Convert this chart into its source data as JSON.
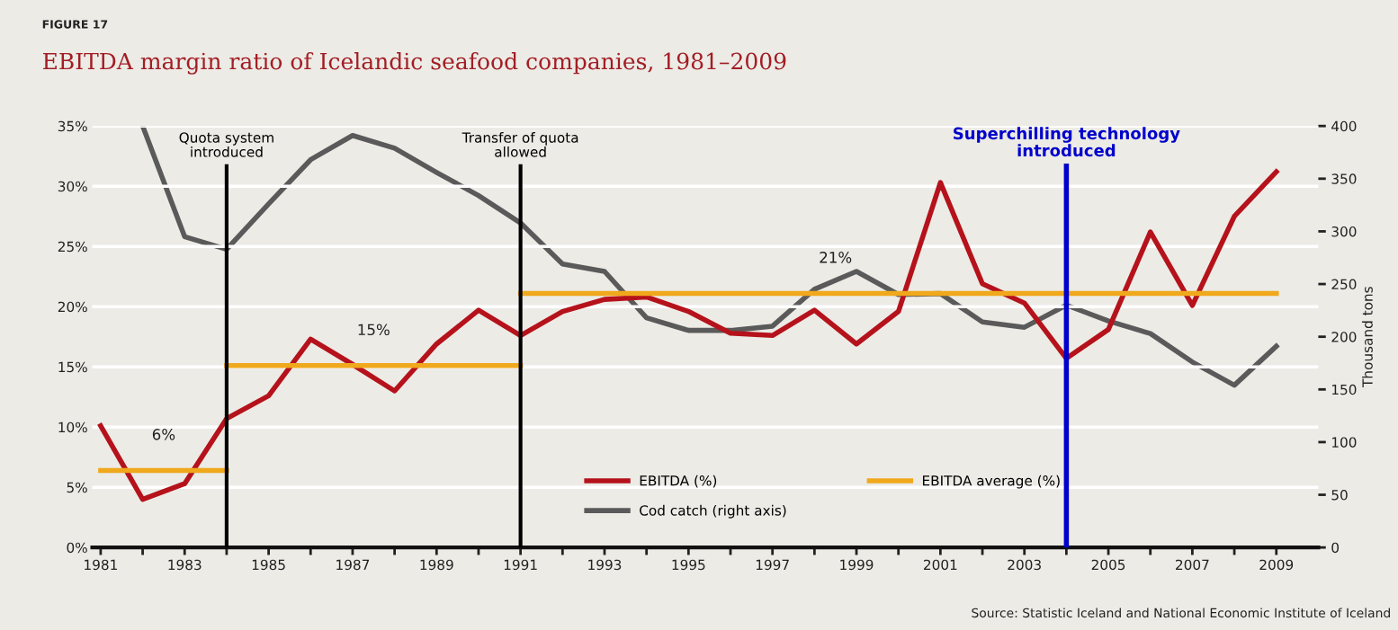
{
  "chart_data": {
    "type": "line",
    "title": "EBITDA margin ratio of Icelandic seafood companies, 1981–2009",
    "y2label": "Thousand tons",
    "x": [
      1981,
      1982,
      1983,
      1984,
      1985,
      1986,
      1987,
      1988,
      1989,
      1990,
      1991,
      1992,
      1993,
      1994,
      1995,
      1996,
      1997,
      1998,
      1999,
      2000,
      2001,
      2002,
      2003,
      2004,
      2005,
      2006,
      2007,
      2008,
      2009
    ],
    "series": [
      {
        "name": "EBITDA (%)",
        "color": "#b5121b",
        "values": [
          10.1,
          4.0,
          5.3,
          10.7,
          12.6,
          17.3,
          15.2,
          13.0,
          16.9,
          19.7,
          17.6,
          19.6,
          20.6,
          20.8,
          19.6,
          17.8,
          17.6,
          19.7,
          16.9,
          19.6,
          30.3,
          21.9,
          20.3,
          15.7,
          18.1,
          26.2,
          20.1,
          27.5,
          31.2
        ]
      },
      {
        "name": "Cod catch (right axis)",
        "color": "#5a5a5a",
        "axis": "y2",
        "values": [
          null,
          400,
          295,
          283,
          326,
          368,
          391,
          379,
          356,
          334,
          308,
          269,
          262,
          218,
          206,
          206,
          210,
          245,
          262,
          240,
          241,
          214,
          209,
          230,
          215,
          203,
          176,
          154,
          191
        ]
      },
      {
        "name": "EBITDA average (%)",
        "color": "#f0a81c",
        "x": [
          1981,
          1984
        ],
        "values": [
          6.4,
          6.4
        ]
      },
      {
        "color": "#f0a81c",
        "x": [
          1984,
          1991
        ],
        "values": [
          15.1,
          15.1
        ]
      },
      {
        "color": "#f0a81c",
        "x": [
          1991,
          2009
        ],
        "values": [
          21.1,
          21.1
        ]
      }
    ],
    "xlim": [
      1980.8,
      2010
    ],
    "xticks": [
      1981,
      {
        "value": 1982,
        "label": null
      },
      1983,
      {
        "value": 1984,
        "label": null
      },
      1985,
      {
        "value": 1986,
        "label": null
      },
      1987,
      {
        "value": 1988,
        "label": null
      },
      1989,
      {
        "value": 1990,
        "label": null
      },
      1991,
      {
        "value": 1992,
        "label": null
      },
      1993,
      {
        "value": 1994,
        "label": null
      },
      1995,
      {
        "value": 1996,
        "label": null
      },
      1997,
      {
        "value": 1998,
        "label": null
      },
      1999,
      {
        "value": 2000,
        "label": null
      },
      2001,
      {
        "value": 2002,
        "label": null
      },
      2003,
      {
        "value": 2004,
        "label": null
      },
      2005,
      {
        "value": 2006,
        "label": null
      },
      2007,
      {
        "value": 2008,
        "label": null
      },
      2009
    ],
    "ylim": [
      0,
      35
    ],
    "yticks": [
      {
        "value": 0,
        "label": "0%"
      },
      {
        "value": 5,
        "label": "5%"
      },
      {
        "value": 10,
        "label": "10%"
      },
      {
        "value": 15,
        "label": "15%"
      },
      {
        "value": 20,
        "label": "20%"
      },
      {
        "value": 25,
        "label": "25%"
      },
      {
        "value": 30,
        "label": "30%"
      },
      {
        "value": 35,
        "label": "35%"
      }
    ],
    "y2lim": [
      0,
      400
    ],
    "y2ticks": [
      0,
      50,
      100,
      150,
      200,
      250,
      300,
      350,
      400
    ],
    "ref_lines": [
      {
        "axis": "x",
        "value": 1984,
        "label": "Quota system\nintroduced",
        "color": "#000000"
      },
      {
        "axis": "x",
        "value": 1991,
        "label": "Transfer of quota\nallowed",
        "color": "#000000"
      },
      {
        "axis": "x",
        "value": 2004,
        "label": "Superchilling technology\nintroduced",
        "color": "#0000cc"
      }
    ],
    "annotations": [
      "FIGURE 17",
      {
        "text": "6%",
        "x": 1982.5,
        "y": 6.4
      },
      {
        "text": "15%",
        "x": 1987.5,
        "y": 15.1
      },
      {
        "text": "21%",
        "x": 1998.5,
        "y": 21.1
      },
      "Source: Statistic Iceland and National Economic Institute of Iceland"
    ],
    "grid": "y",
    "legend": "bottom right"
  }
}
